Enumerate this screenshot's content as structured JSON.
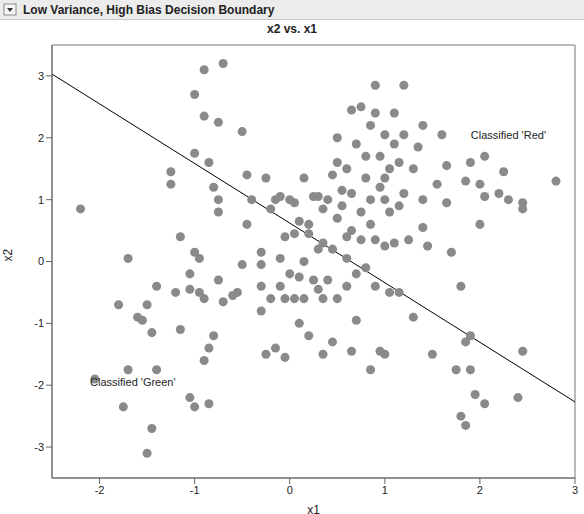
{
  "chart_data": {
    "type": "scatter",
    "panel_title": "Low Variance, High Bias Decision Boundary",
    "title": "x2 vs. x1",
    "x_label": "x1",
    "y_label": "x2",
    "xlim": [
      -2.5,
      3
    ],
    "ylim": [
      -3.5,
      3.5
    ],
    "xticks": [
      -2,
      -1,
      0,
      1,
      2,
      3
    ],
    "yticks": [
      -3,
      -2,
      -1,
      0,
      1,
      2,
      3
    ],
    "grid": false,
    "color": "#8a8a8a",
    "marker": "circle",
    "points": [
      [
        -2.2,
        0.85
      ],
      [
        -1.8,
        -0.7
      ],
      [
        -1.7,
        0.05
      ],
      [
        -1.7,
        -1.75
      ],
      [
        -1.55,
        -0.95
      ],
      [
        -1.5,
        -0.7
      ],
      [
        -1.45,
        -1.15
      ],
      [
        -1.4,
        -1.75
      ],
      [
        -1.45,
        -2.7
      ],
      [
        -1.5,
        -3.1
      ],
      [
        -1.75,
        -2.35
      ],
      [
        -2.05,
        -1.9
      ],
      [
        -1.6,
        -0.9
      ],
      [
        -1.4,
        -0.4
      ],
      [
        -1.25,
        1.45
      ],
      [
        -1.25,
        1.25
      ],
      [
        -1.15,
        0.4
      ],
      [
        -1.2,
        -0.5
      ],
      [
        -1.15,
        -1.1
      ],
      [
        -1.05,
        -2.2
      ],
      [
        -1.0,
        -2.35
      ],
      [
        -0.85,
        -2.3
      ],
      [
        -0.95,
        -0.5
      ],
      [
        -0.9,
        -0.6
      ],
      [
        -0.85,
        -1.4
      ],
      [
        -0.9,
        -1.6
      ],
      [
        -0.95,
        0.05
      ],
      [
        -1.0,
        0.15
      ],
      [
        -1.05,
        -0.2
      ],
      [
        -1.0,
        1.75
      ],
      [
        -0.85,
        1.6
      ],
      [
        -0.8,
        1.2
      ],
      [
        -0.75,
        1.0
      ],
      [
        -0.75,
        0.8
      ],
      [
        -0.75,
        -0.3
      ],
      [
        -0.8,
        -1.2
      ],
      [
        -0.7,
        -0.65
      ],
      [
        -0.55,
        -0.5
      ],
      [
        -0.6,
        -0.55
      ],
      [
        -0.5,
        -0.05
      ],
      [
        -0.45,
        0.6
      ],
      [
        -0.45,
        1.4
      ],
      [
        -0.4,
        1.0
      ],
      [
        -0.3,
        0.15
      ],
      [
        -0.3,
        -0.4
      ],
      [
        -0.25,
        -1.5
      ],
      [
        -0.2,
        -0.6
      ],
      [
        -0.15,
        -1.4
      ],
      [
        -0.05,
        -1.55
      ],
      [
        -0.2,
        0.85
      ],
      [
        -0.15,
        1.0
      ],
      [
        -0.1,
        0.05
      ],
      [
        -0.05,
        -0.6
      ],
      [
        -1.05,
        -0.45
      ],
      [
        -0.9,
        3.1
      ],
      [
        -0.7,
        3.2
      ],
      [
        -1.0,
        2.7
      ],
      [
        -0.9,
        2.35
      ],
      [
        -0.75,
        2.25
      ],
      [
        -0.5,
        2.1
      ],
      [
        -0.25,
        1.35
      ],
      [
        -0.1,
        1.05
      ],
      [
        -0.05,
        0.4
      ],
      [
        -0.3,
        -0.05
      ],
      [
        0.0,
        1.0
      ],
      [
        0.05,
        0.95
      ],
      [
        0.05,
        0.45
      ],
      [
        0.1,
        0.65
      ],
      [
        0.1,
        -0.25
      ],
      [
        0.05,
        -0.6
      ],
      [
        0.1,
        -1.0
      ],
      [
        0.15,
        1.35
      ],
      [
        0.15,
        -0.6
      ],
      [
        0.2,
        -1.2
      ],
      [
        0.2,
        0.45
      ],
      [
        0.25,
        1.05
      ],
      [
        0.25,
        -0.3
      ],
      [
        0.3,
        0.2
      ],
      [
        0.3,
        -0.45
      ],
      [
        0.35,
        0.3
      ],
      [
        0.35,
        -0.6
      ],
      [
        0.35,
        -1.5
      ],
      [
        0.4,
        -0.3
      ],
      [
        0.4,
        1.0
      ],
      [
        0.45,
        1.4
      ],
      [
        0.45,
        0.2
      ],
      [
        0.45,
        -1.3
      ],
      [
        0.5,
        0.7
      ],
      [
        0.5,
        2.0
      ],
      [
        0.5,
        -0.6
      ],
      [
        0.55,
        0.9
      ],
      [
        0.6,
        0.4
      ],
      [
        0.6,
        1.5
      ],
      [
        0.6,
        -0.4
      ],
      [
        0.65,
        2.45
      ],
      [
        0.65,
        0.5
      ],
      [
        0.65,
        1.1
      ],
      [
        0.65,
        -1.45
      ],
      [
        0.7,
        1.9
      ],
      [
        0.7,
        -0.95
      ],
      [
        0.75,
        0.8
      ],
      [
        0.75,
        2.5
      ],
      [
        0.75,
        0.35
      ],
      [
        0.8,
        1.35
      ],
      [
        0.8,
        1.7
      ],
      [
        0.8,
        -0.1
      ],
      [
        0.85,
        2.2
      ],
      [
        0.85,
        1.0
      ],
      [
        0.85,
        0.6
      ],
      [
        0.85,
        -1.75
      ],
      [
        0.9,
        2.4
      ],
      [
        0.9,
        0.35
      ],
      [
        0.9,
        -0.4
      ],
      [
        0.95,
        1.2
      ],
      [
        0.95,
        1.7
      ],
      [
        0.95,
        -1.45
      ],
      [
        1.0,
        1.35
      ],
      [
        1.0,
        0.25
      ],
      [
        1.0,
        2.05
      ],
      [
        1.0,
        -1.5
      ],
      [
        1.05,
        1.5
      ],
      [
        1.05,
        0.8
      ],
      [
        1.05,
        -0.5
      ],
      [
        1.1,
        2.4
      ],
      [
        1.1,
        1.9
      ],
      [
        1.1,
        0.3
      ],
      [
        1.15,
        1.6
      ],
      [
        1.15,
        0.9
      ],
      [
        1.15,
        -0.5
      ],
      [
        1.2,
        2.85
      ],
      [
        1.2,
        2.05
      ],
      [
        1.2,
        1.1
      ],
      [
        1.25,
        0.35
      ],
      [
        1.3,
        1.5
      ],
      [
        1.3,
        -0.9
      ],
      [
        1.35,
        1.85
      ],
      [
        1.4,
        1.0
      ],
      [
        1.4,
        0.55
      ],
      [
        1.4,
        2.2
      ],
      [
        1.45,
        0.25
      ],
      [
        1.5,
        -1.5
      ],
      [
        1.55,
        1.25
      ],
      [
        1.6,
        2.05
      ],
      [
        1.65,
        1.55
      ],
      [
        1.65,
        0.95
      ],
      [
        1.7,
        0.15
      ],
      [
        1.75,
        -1.75
      ],
      [
        1.8,
        -0.4
      ],
      [
        1.8,
        -2.5
      ],
      [
        1.85,
        1.3
      ],
      [
        1.85,
        -2.65
      ],
      [
        1.9,
        1.6
      ],
      [
        1.9,
        -1.2
      ],
      [
        1.9,
        -1.75
      ],
      [
        1.95,
        -2.15
      ],
      [
        2.0,
        1.25
      ],
      [
        2.0,
        0.6
      ],
      [
        2.05,
        1.7
      ],
      [
        2.05,
        1.05
      ],
      [
        2.05,
        -2.3
      ],
      [
        2.2,
        1.1
      ],
      [
        2.25,
        1.45
      ],
      [
        2.3,
        1.0
      ],
      [
        2.4,
        -2.2
      ],
      [
        2.45,
        0.95
      ],
      [
        2.45,
        0.85
      ],
      [
        2.45,
        -1.45
      ],
      [
        2.8,
        1.3
      ],
      [
        1.85,
        -1.3
      ],
      [
        0.9,
        2.85
      ],
      [
        0.55,
        1.15
      ],
      [
        0.3,
        1.05
      ],
      [
        0.35,
        0.85
      ],
      [
        0.2,
        0.6
      ],
      [
        0.6,
        0.05
      ],
      [
        0.7,
        -0.2
      ],
      [
        1.0,
        1.0
      ],
      [
        0.5,
        1.6
      ],
      [
        -0.3,
        -0.8
      ],
      [
        -0.1,
        -0.4
      ],
      [
        0.0,
        -0.2
      ],
      [
        0.15,
        0.0
      ]
    ],
    "boundary": {
      "x": [
        -2.5,
        3
      ],
      "y": [
        3.03,
        -2.27
      ],
      "color": "#000000"
    },
    "annotations": [
      {
        "text": "Classified 'Red'",
        "x": 2.3,
        "y": 2.05
      },
      {
        "text": "Classified 'Green'",
        "x": -1.65,
        "y": -1.95
      }
    ]
  }
}
